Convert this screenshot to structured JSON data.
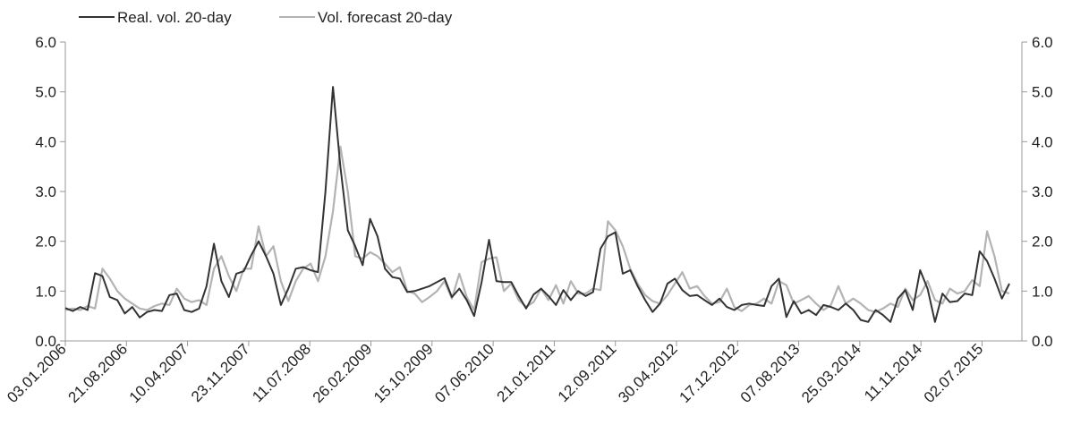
{
  "chart_data": {
    "type": "line",
    "title": "",
    "xlabel": "",
    "ylabel": "",
    "ylim": [
      0,
      6
    ],
    "y_ticks": [
      "0.0",
      "1.0",
      "2.0",
      "3.0",
      "4.0",
      "5.0",
      "6.0"
    ],
    "secondary_y_ticks": [
      "0.0",
      "1.0",
      "2.0",
      "3.0",
      "4.0",
      "5.0",
      "6.0"
    ],
    "x_tick_labels": [
      "03.01.2006",
      "21.08.2006",
      "10.04.2007",
      "23.11.2007",
      "11.07.2008",
      "26.02.2009",
      "15.10.2009",
      "07.06.2010",
      "21.01.2011",
      "12.09.2011",
      "30.04.2012",
      "17.12.2012",
      "07.08.2013",
      "25.03.2014",
      "11.11.2014",
      "02.07.2015"
    ],
    "grid": false,
    "legend_position": "top-left",
    "series": [
      {
        "name": "Real. vol. 20-day",
        "color": "#333333",
        "values": [
          0.66,
          0.6,
          0.68,
          0.62,
          1.36,
          1.3,
          0.88,
          0.82,
          0.55,
          0.68,
          0.47,
          0.58,
          0.62,
          0.6,
          0.92,
          0.95,
          0.62,
          0.58,
          0.65,
          1.1,
          1.95,
          1.2,
          0.88,
          1.35,
          1.4,
          1.72,
          2.0,
          1.7,
          1.35,
          0.72,
          1.05,
          1.45,
          1.48,
          1.42,
          1.38,
          3.0,
          5.1,
          3.5,
          2.22,
          1.9,
          1.52,
          2.45,
          2.1,
          1.45,
          1.28,
          1.25,
          0.98,
          1.0,
          1.05,
          1.1,
          1.18,
          1.26,
          0.88,
          1.05,
          0.82,
          0.5,
          1.18,
          2.03,
          1.2,
          1.18,
          1.18,
          0.9,
          0.65,
          0.93,
          1.05,
          0.9,
          0.72,
          1.02,
          0.82,
          1.0,
          0.9,
          0.98,
          1.85,
          2.1,
          2.18,
          1.35,
          1.42,
          1.1,
          0.82,
          0.58,
          0.75,
          1.15,
          1.25,
          1.02,
          0.9,
          0.92,
          0.82,
          0.72,
          0.85,
          0.68,
          0.62,
          0.72,
          0.75,
          0.72,
          0.7,
          1.1,
          1.25,
          0.48,
          0.8,
          0.55,
          0.62,
          0.52,
          0.72,
          0.68,
          0.62,
          0.75,
          0.62,
          0.42,
          0.38,
          0.62,
          0.52,
          0.38,
          0.85,
          1.02,
          0.62,
          1.42,
          1.05,
          0.38,
          0.95,
          0.78,
          0.8,
          0.95,
          0.92,
          1.8,
          1.6,
          1.25,
          0.85,
          1.15
        ]
      },
      {
        "name": "Vol. forecast 20-day",
        "color": "#b3b3b3",
        "values": [
          0.62,
          0.65,
          0.62,
          0.7,
          0.65,
          1.45,
          1.25,
          1.0,
          0.85,
          0.75,
          0.65,
          0.62,
          0.7,
          0.75,
          0.72,
          1.05,
          0.85,
          0.78,
          0.82,
          0.72,
          1.45,
          1.7,
          1.3,
          1.0,
          1.45,
          1.45,
          2.3,
          1.7,
          1.9,
          1.2,
          0.8,
          1.2,
          1.45,
          1.55,
          1.2,
          1.7,
          2.6,
          3.9,
          3.0,
          1.7,
          1.65,
          1.78,
          1.7,
          1.55,
          1.38,
          1.48,
          1.0,
          0.95,
          0.78,
          0.88,
          1.0,
          1.2,
          0.85,
          1.35,
          0.88,
          0.62,
          1.58,
          1.65,
          1.68,
          1.0,
          1.15,
          0.82,
          0.68,
          0.78,
          1.05,
          0.82,
          1.12,
          0.75,
          1.2,
          0.95,
          0.95,
          1.05,
          1.02,
          2.4,
          2.22,
          1.9,
          1.45,
          1.15,
          0.92,
          0.8,
          0.75,
          0.92,
          1.15,
          1.38,
          1.05,
          1.1,
          0.9,
          0.75,
          0.78,
          1.05,
          0.68,
          0.6,
          0.72,
          0.75,
          0.85,
          0.75,
          1.2,
          1.12,
          0.75,
          0.82,
          0.9,
          0.75,
          0.62,
          0.72,
          1.1,
          0.75,
          0.85,
          0.75,
          0.62,
          0.58,
          0.65,
          0.75,
          0.68,
          1.05,
          0.82,
          0.92,
          1.2,
          0.82,
          0.75,
          1.05,
          0.95,
          1.0,
          1.22,
          1.1,
          2.2,
          1.7,
          1.0,
          0.95
        ]
      }
    ]
  }
}
